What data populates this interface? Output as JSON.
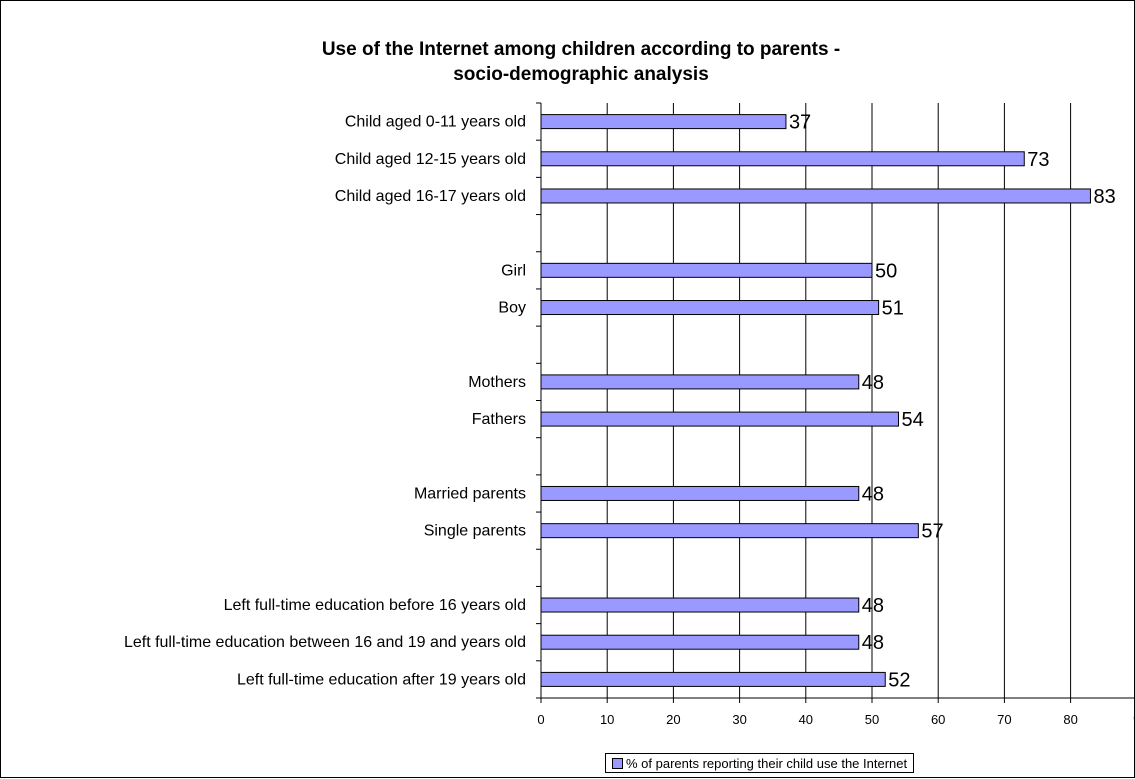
{
  "chart_data": {
    "type": "bar",
    "orientation": "horizontal",
    "title": [
      "Use of the Internet among children according to parents -",
      "socio-demographic analysis"
    ],
    "xlabel": "",
    "ylabel": "",
    "xlim": [
      0,
      90
    ],
    "x_ticks": [
      "0",
      "10",
      "20",
      "30",
      "40",
      "50",
      "60",
      "70",
      "80",
      "9"
    ],
    "grid": "vertical",
    "legend_position": "bottom",
    "bar_color": "#9999ff",
    "series": [
      {
        "name": "% of parents reporting their child use the Internet",
        "categories": [
          "Child aged 0-11 years old",
          "Child aged 12-15 years old",
          "Child aged 16-17 years old",
          "",
          "Girl",
          "Boy",
          "",
          "Mothers",
          "Fathers",
          "",
          "Married parents",
          "Single parents",
          "",
          "Left full-time education before 16 years old",
          "Left full-time education between 16 and 19 and years old",
          "Left full-time education after 19 years old"
        ],
        "values": [
          37,
          73,
          83,
          null,
          50,
          51,
          null,
          48,
          54,
          null,
          48,
          57,
          null,
          48,
          48,
          52
        ],
        "data_labels": [
          "37",
          "73",
          "83",
          "",
          "50",
          "51",
          "",
          "48",
          "54",
          "",
          "48",
          "57",
          "",
          "48",
          "48",
          "52"
        ]
      }
    ]
  }
}
